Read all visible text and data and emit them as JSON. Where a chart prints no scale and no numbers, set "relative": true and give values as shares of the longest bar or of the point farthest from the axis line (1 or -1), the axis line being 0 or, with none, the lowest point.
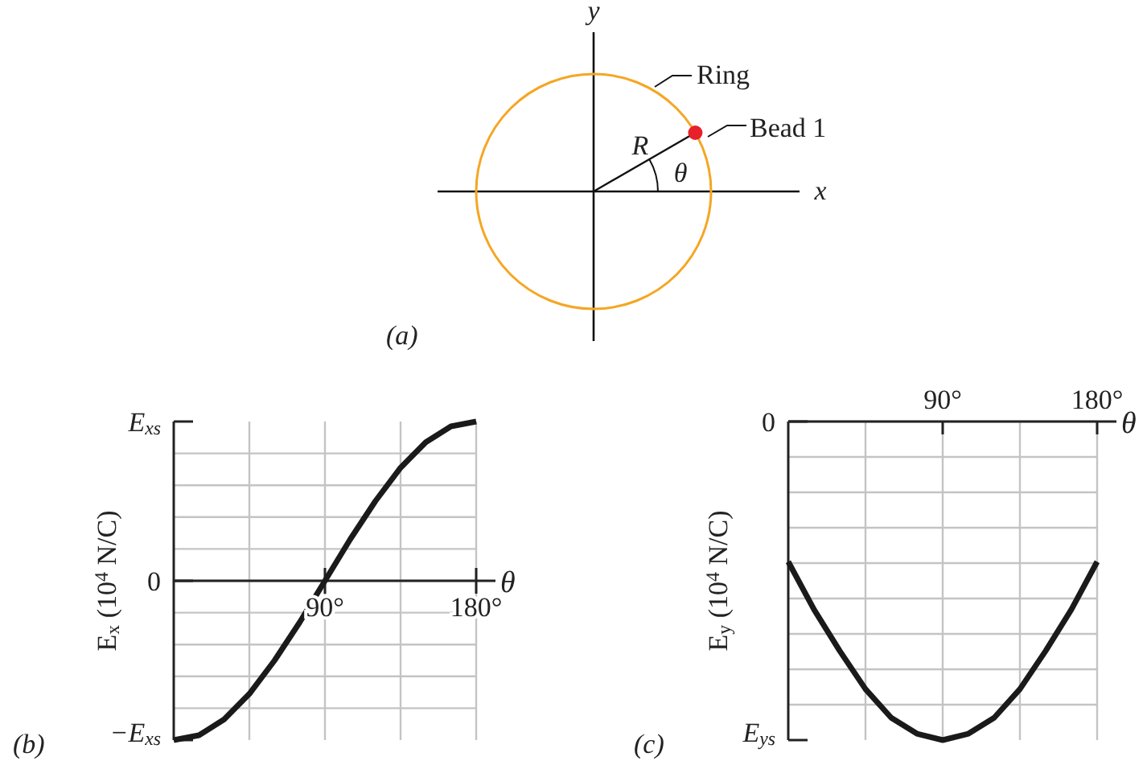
{
  "chart_data": [
    {
      "type": "other",
      "title": "(a)",
      "annotations": [
        "y",
        "x",
        "Ring",
        "Bead 1",
        "R",
        "θ"
      ]
    },
    {
      "type": "line",
      "title": "(b)",
      "xlabel": "θ",
      "ylabel": "E$_{x}$ (10$^{4}$ N/C)",
      "relative": true,
      "x": [
        0,
        15,
        30,
        45,
        60,
        75,
        90,
        105,
        120,
        135,
        150,
        165,
        180
      ],
      "series": [
        {
          "color": "#1a1a1a",
          "values": [
            -1,
            -0.97,
            -0.87,
            -0.71,
            -0.5,
            -0.26,
            0,
            0.26,
            0.5,
            0.71,
            0.87,
            0.97,
            1
          ]
        }
      ],
      "xlim": [
        0,
        180
      ],
      "xticks": [
        {
          "value": 45,
          "label": null
        },
        {
          "value": 90,
          "label": "90°"
        },
        {
          "value": 135,
          "label": null
        },
        {
          "value": 180,
          "label": "180°"
        }
      ],
      "annotations": [
        "E$_{xs}$",
        "0",
        "−E$_{xs}$"
      ],
      "grid": "x",
      "marker": "none",
      "line_style": "solid"
    },
    {
      "type": "line",
      "title": "(c)",
      "xlabel": "θ",
      "ylabel": "E$_{y}$ (10$^{4}$ N/C)",
      "relative": true,
      "x": [
        0,
        15,
        30,
        45,
        60,
        75,
        90,
        105,
        120,
        135,
        150,
        165,
        180
      ],
      "series": [
        {
          "color": "#1a1a1a",
          "values": [
            -0.44,
            -0.59,
            -0.72,
            -0.84,
            -0.93,
            -0.98,
            -1,
            -0.98,
            -0.93,
            -0.84,
            -0.72,
            -0.59,
            -0.44
          ]
        }
      ],
      "xlim": [
        0,
        180
      ],
      "xticks": [
        {
          "value": 45,
          "label": null
        },
        {
          "value": 90,
          "label": "90°"
        },
        {
          "value": 135,
          "label": null
        },
        {
          "value": 180,
          "label": "180°"
        }
      ],
      "annotations": [
        "0",
        "E$_{ys}$"
      ],
      "grid": "x",
      "marker": "none",
      "line_style": "solid"
    }
  ]
}
